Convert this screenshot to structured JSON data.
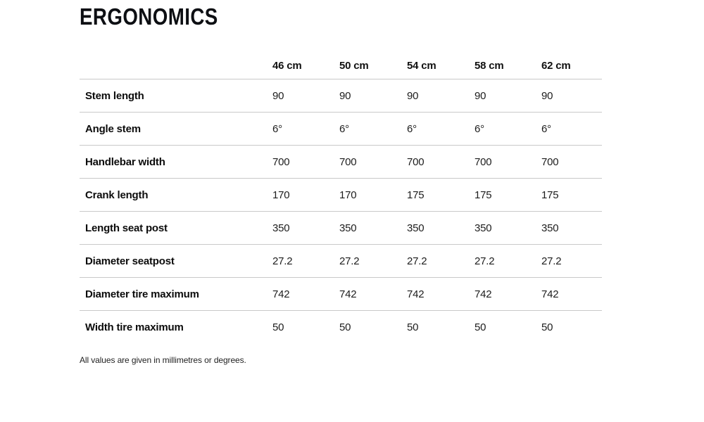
{
  "page": {
    "title": "ERGONOMICS",
    "footnote": "All values are given in millimetres or degrees."
  },
  "table": {
    "label_column_header": "",
    "columns": [
      "46 cm",
      "50 cm",
      "54 cm",
      "58 cm",
      "62 cm"
    ],
    "rows": [
      {
        "label": "Stem length",
        "values": [
          "90",
          "90",
          "90",
          "90",
          "90"
        ]
      },
      {
        "label": "Angle stem",
        "values": [
          "6°",
          "6°",
          "6°",
          "6°",
          "6°"
        ]
      },
      {
        "label": "Handlebar width",
        "values": [
          "700",
          "700",
          "700",
          "700",
          "700"
        ]
      },
      {
        "label": "Crank length",
        "values": [
          "170",
          "170",
          "175",
          "175",
          "175"
        ]
      },
      {
        "label": "Length seat post",
        "values": [
          "350",
          "350",
          "350",
          "350",
          "350"
        ]
      },
      {
        "label": "Diameter seatpost",
        "values": [
          "27.2",
          "27.2",
          "27.2",
          "27.2",
          "27.2"
        ]
      },
      {
        "label": "Diameter tire maximum",
        "values": [
          "742",
          "742",
          "742",
          "742",
          "742"
        ]
      },
      {
        "label": "Width tire maximum",
        "values": [
          "50",
          "50",
          "50",
          "50",
          "50"
        ]
      }
    ]
  },
  "colors": {
    "heading_text": "#0d0f13",
    "body_text": "#1d1d1d",
    "row_divider": "#c9c9c9",
    "background": "#ffffff"
  }
}
